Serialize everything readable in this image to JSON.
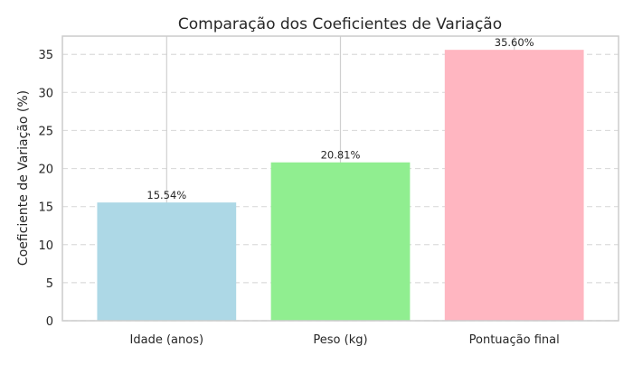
{
  "chart_data": {
    "type": "bar",
    "title": "Comparação dos Coeficientes de Variação",
    "xlabel": "",
    "ylabel": "Coeficiente de Variação (%)",
    "categories": [
      "Idade (anos)",
      "Peso (kg)",
      "Pontuação final"
    ],
    "values": [
      15.54,
      20.81,
      35.6
    ],
    "value_labels": [
      "15.54%",
      "20.81%",
      "35.60%"
    ],
    "bar_colors": [
      "#add8e6",
      "#90ee90",
      "#ffb6c1"
    ],
    "ylim": [
      0,
      37.4
    ],
    "yticks": [
      0,
      5,
      10,
      15,
      20,
      25,
      30,
      35
    ],
    "grid": {
      "y": true,
      "y_style": "dashed",
      "x": true
    },
    "legend": "none"
  }
}
